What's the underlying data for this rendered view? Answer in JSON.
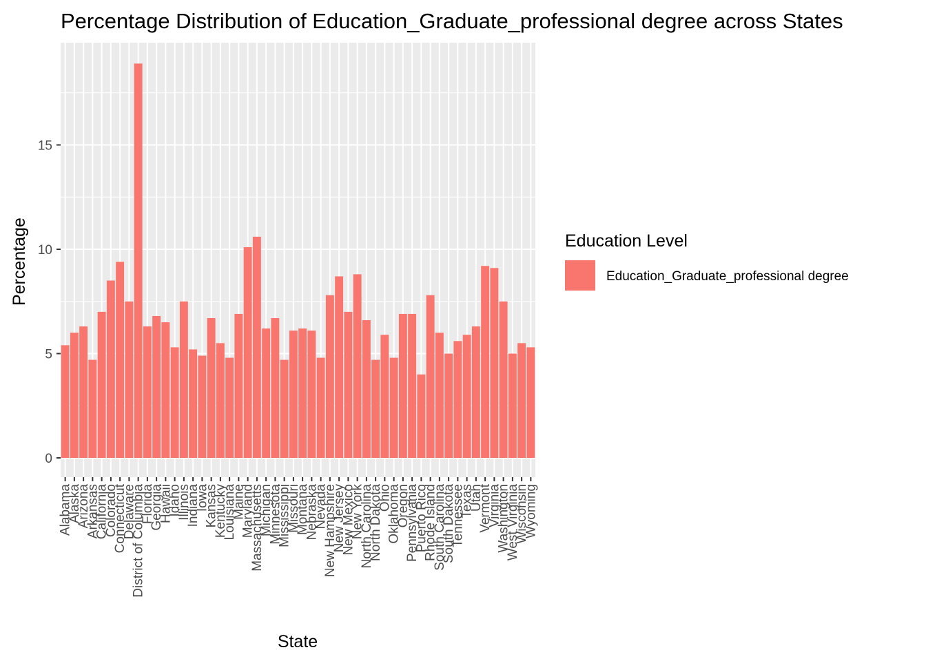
{
  "chart_data": {
    "type": "bar",
    "title": "Percentage Distribution of Education_Graduate_professional degree across States",
    "xlabel": "State",
    "ylabel": "Percentage",
    "ylim": [
      0,
      19.5
    ],
    "yticks": [
      0,
      5,
      10,
      15
    ],
    "ytick_labels": [
      "0",
      "5",
      "10",
      "15"
    ],
    "grid": true,
    "legend_position": "right",
    "legend_title": "Education Level",
    "categories": [
      "Alabama",
      "Alaska",
      "Arizona",
      "Arkansas",
      "California",
      "Colorado",
      "Connecticut",
      "Delaware",
      "District of Columbia",
      "Florida",
      "Georgia",
      "Hawaii",
      "Idaho",
      "Illinois",
      "Indiana",
      "Iowa",
      "Kansas",
      "Kentucky",
      "Louisiana",
      "Maine",
      "Maryland",
      "Massachusetts",
      "Michigan",
      "Minnesota",
      "Mississippi",
      "Missouri",
      "Montana",
      "Nebraska",
      "Nevada",
      "New Hampshire",
      "New Jersey",
      "New Mexico",
      "New York",
      "North Carolina",
      "North Dakota",
      "Ohio",
      "Oklahoma",
      "Oregon",
      "Pennsylvania",
      "Puerto Rico",
      "Rhode Island",
      "South Carolina",
      "South Dakota",
      "Tennessee",
      "Texas",
      "Utah",
      "Vermont",
      "Virginia",
      "Washington",
      "West Virginia",
      "Wisconsin",
      "Wyoming"
    ],
    "series": [
      {
        "name": "Education_Graduate_professional degree",
        "color": "#f8766d",
        "values": [
          5.4,
          6.0,
          6.3,
          4.7,
          7.0,
          8.5,
          9.4,
          7.5,
          18.9,
          6.3,
          6.8,
          6.5,
          5.3,
          7.5,
          5.2,
          4.9,
          6.7,
          5.5,
          4.8,
          6.9,
          10.1,
          10.6,
          6.2,
          6.7,
          4.7,
          6.1,
          6.2,
          6.1,
          4.8,
          7.8,
          8.7,
          7.0,
          8.8,
          6.6,
          4.7,
          5.9,
          4.8,
          6.9,
          6.9,
          4.0,
          7.8,
          6.0,
          5.0,
          5.6,
          5.9,
          6.3,
          9.2,
          9.1,
          7.5,
          5.0,
          5.5,
          5.3
        ]
      }
    ]
  }
}
